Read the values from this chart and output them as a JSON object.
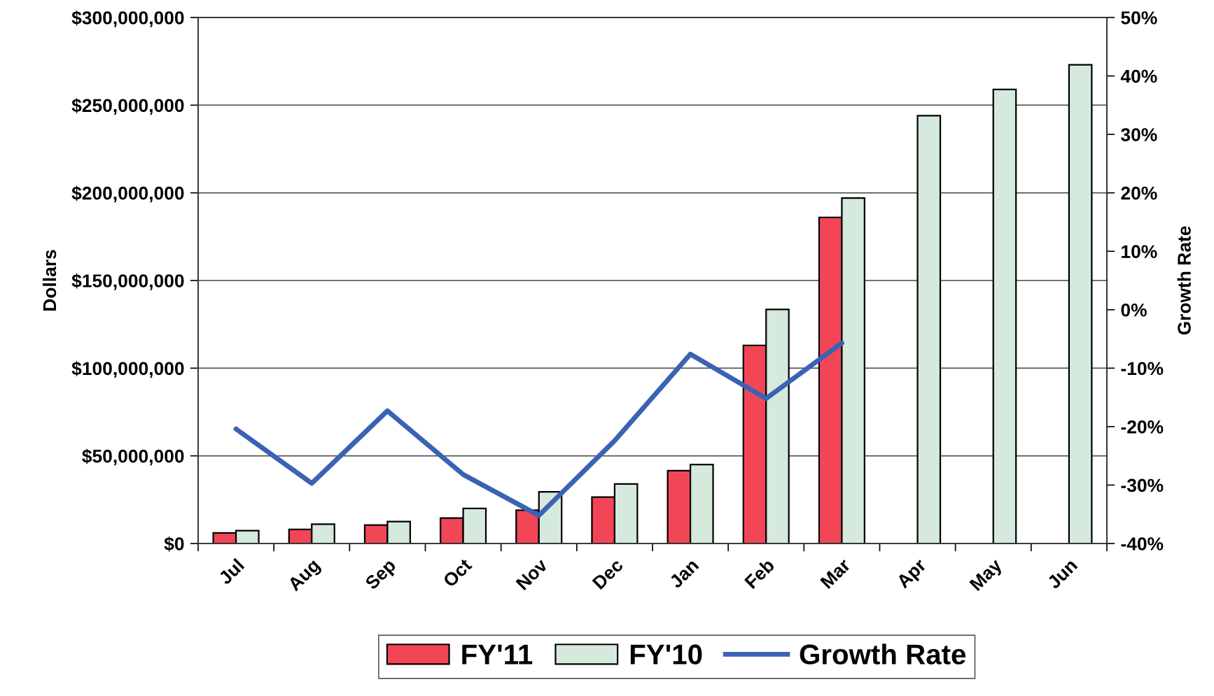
{
  "chart_data": {
    "type": "bar",
    "categories": [
      "Jul",
      "Aug",
      "Sep",
      "Oct",
      "Nov",
      "Dec",
      "Jan",
      "Feb",
      "Mar",
      "Apr",
      "May",
      "Jun"
    ],
    "series": [
      {
        "name": "FY'11",
        "color": "#f24657",
        "values": [
          6000000,
          8000000,
          10500000,
          14500000,
          19000000,
          26500000,
          41500000,
          113000000,
          186000000,
          null,
          null,
          null
        ]
      },
      {
        "name": "FY'10",
        "color": "#d5e9dd",
        "values": [
          7300000,
          11000000,
          12500000,
          20000000,
          29500000,
          34000000,
          45000000,
          133500000,
          197000000,
          244000000,
          259000000,
          273000000
        ]
      },
      {
        "name": "Growth Rate",
        "type": "line",
        "axis": "y2",
        "color": "#3a62b5",
        "values": [
          -20.4,
          -29.7,
          -17.3,
          -28.2,
          -35.2,
          -22.4,
          -7.6,
          -15.2,
          -5.7,
          null,
          null,
          null
        ]
      }
    ],
    "ylabel": "Dollars",
    "y2label": "Growth Rate",
    "ylim": [
      0,
      300000000
    ],
    "yticks": [
      {
        "value": 0,
        "label": "$0"
      },
      {
        "value": 50000000,
        "label": "$50,000,000"
      },
      {
        "value": 100000000,
        "label": "$100,000,000"
      },
      {
        "value": 150000000,
        "label": "$150,000,000"
      },
      {
        "value": 200000000,
        "label": "$200,000,000"
      },
      {
        "value": 250000000,
        "label": "$250,000,000"
      },
      {
        "value": 300000000,
        "label": "$300,000,000"
      }
    ],
    "y2lim": [
      -40,
      50
    ],
    "y2ticks": [
      {
        "value": -40,
        "label": "-40%"
      },
      {
        "value": -30,
        "label": "-30%"
      },
      {
        "value": -20,
        "label": "-20%"
      },
      {
        "value": -10,
        "label": "-10%"
      },
      {
        "value": 0,
        "label": "0%"
      },
      {
        "value": 10,
        "label": "10%"
      },
      {
        "value": 20,
        "label": "20%"
      },
      {
        "value": 30,
        "label": "30%"
      },
      {
        "value": 40,
        "label": "40%"
      },
      {
        "value": 50,
        "label": "50%"
      }
    ],
    "grid": "y",
    "legend": "bottom"
  }
}
